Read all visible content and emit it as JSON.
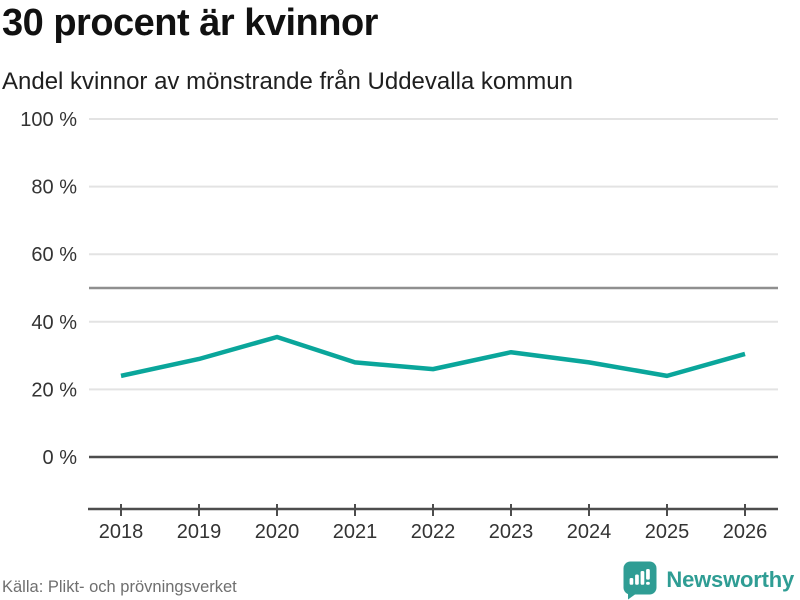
{
  "header": {
    "title": "30 procent är kvinnor",
    "subtitle": "Andel kvinnor av mönstrande från Uddevalla kommun"
  },
  "chart_data": {
    "type": "line",
    "title": "30 procent är kvinnor",
    "subtitle": "Andel kvinnor av mönstrande från Uddevalla kommun",
    "x": [
      2018,
      2019,
      2020,
      2021,
      2022,
      2023,
      2024,
      2025,
      2026
    ],
    "series": [
      {
        "name": "Andel kvinnor av mönstrande",
        "color": "#0aa69b",
        "values": [
          24,
          29,
          35.5,
          28,
          26,
          31,
          28,
          24,
          30.5
        ]
      }
    ],
    "unit": "%",
    "ylim": [
      0,
      100
    ],
    "yticks": [
      {
        "value": 0,
        "label": "0 %"
      },
      {
        "value": 20,
        "label": "20 %"
      },
      {
        "value": 40,
        "label": "40 %"
      },
      {
        "value": 60,
        "label": "60 %"
      },
      {
        "value": 80,
        "label": "80 %"
      },
      {
        "value": 100,
        "label": "100 %"
      }
    ],
    "xtick_labels": [
      "2018",
      "2019",
      "2020",
      "2021",
      "2022",
      "2023",
      "2024",
      "2025",
      "2026"
    ],
    "reference_line": 50,
    "grid": true,
    "legend": false
  },
  "footer": {
    "source": "Källa: Plikt- och prövningsverket",
    "brand": {
      "name": "Newsworthy",
      "icon": "bar-chart-speech-bubble-icon",
      "color": "#2f9d94"
    }
  },
  "colors": {
    "line": "#0aa69b",
    "grid": "#e3e3e3",
    "reference_line": "#8f8f8f",
    "axis": "#4d4d4d",
    "tick_text": "#333333",
    "title_text": "#111111",
    "muted_text": "#6f6f6f",
    "brand_teal": "#2f9d94"
  }
}
